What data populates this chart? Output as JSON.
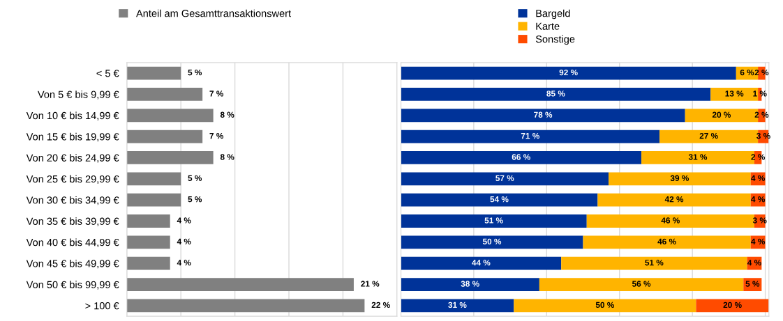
{
  "chart_data": [
    {
      "type": "bar",
      "orientation": "horizontal",
      "categories": [
        "< 5 €",
        "Von 5 € bis 9,99 €",
        "Von 10 € bis 14,99 €",
        "Von 15 € bis 19,99 €",
        "Von 20 € bis 24,99 €",
        "Von 25 € bis 29,99 €",
        "Von 30 € bis 34,99 €",
        "Von 35 € bis 39,99 €",
        "Von 40 € bis 44,99 €",
        "Von 45 € bis 49,99 €",
        "Von 50 € bis 99,99 €",
        "> 100 €"
      ],
      "series": [
        {
          "name": "Anteil am Gesamttransaktionswert",
          "color": "#808080",
          "values": [
            5,
            7,
            8,
            7,
            8,
            5,
            5,
            4,
            4,
            4,
            21,
            22
          ],
          "value_labels": [
            "5 %",
            "7 %",
            "8 %",
            "7 %",
            "8 %",
            "5 %",
            "5 %",
            "4 %",
            "4 %",
            "4 %",
            "21 %",
            "22 %"
          ]
        }
      ],
      "xlim": [
        0,
        25
      ],
      "xticks": [
        {
          "value": 0,
          "label": null
        },
        {
          "value": 5,
          "label": null
        },
        {
          "value": 10,
          "label": null
        },
        {
          "value": 15,
          "label": null
        },
        {
          "value": 20,
          "label": null
        },
        {
          "value": 25,
          "label": null
        }
      ],
      "grid": "x",
      "legend": "top",
      "tick_labels": "y"
    },
    {
      "type": "bar",
      "orientation": "horizontal",
      "stacked": true,
      "categories": [
        null,
        null,
        null,
        null,
        null,
        null,
        null,
        null,
        null,
        null,
        null,
        null
      ],
      "series": [
        {
          "name": "Bargeld",
          "color": "#003399",
          "values": [
            92,
            85,
            78,
            71,
            66,
            57,
            54,
            51,
            50,
            44,
            38,
            31
          ],
          "value_labels": [
            "92 %",
            "85 %",
            "78 %",
            "71 %",
            "66 %",
            "57 %",
            "54 %",
            "51 %",
            "50 %",
            "44 %",
            "38 %",
            "31 %"
          ]
        },
        {
          "name": "Karte",
          "color": "#ffb400",
          "values": [
            6,
            13,
            20,
            27,
            31,
            39,
            42,
            46,
            46,
            51,
            56,
            50
          ],
          "value_labels": [
            "6 %",
            "13 %",
            "20 %",
            "27 %",
            "31 %",
            "39 %",
            "42 %",
            "46 %",
            "46 %",
            "51 %",
            "56 %",
            "50 %"
          ]
        },
        {
          "name": "Sonstige",
          "color": "#ff4b00",
          "values": [
            2,
            1,
            2,
            3,
            2,
            4,
            4,
            3,
            4,
            4,
            5,
            20
          ],
          "value_labels": [
            "2 %",
            "1 %",
            "2 %",
            "3 %",
            "2 %",
            "4 %",
            "4 %",
            "3 %",
            "4 %",
            "4 %",
            "5 %",
            "20 %"
          ]
        }
      ],
      "xlim": [
        0,
        101
      ],
      "xticks": [
        {
          "value": 0,
          "label": null
        },
        {
          "value": 20,
          "label": null
        },
        {
          "value": 40,
          "label": null
        },
        {
          "value": 60,
          "label": null
        },
        {
          "value": 80,
          "label": null
        },
        {
          "value": 100,
          "label": null
        }
      ],
      "grid": "x",
      "legend": "top"
    }
  ]
}
